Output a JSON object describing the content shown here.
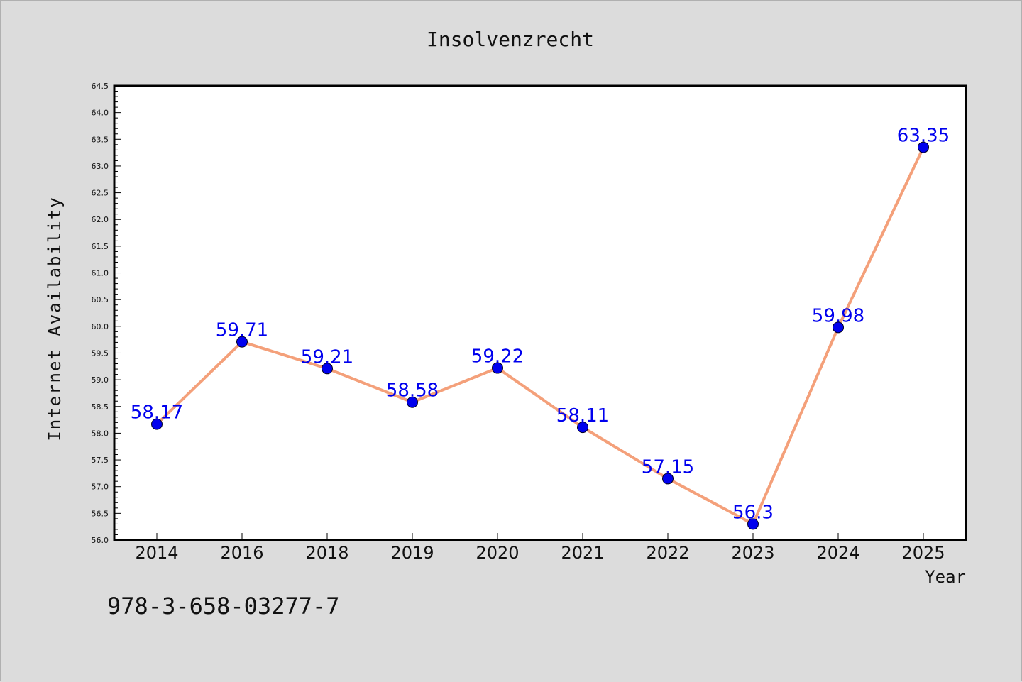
{
  "chart_data": {
    "type": "line",
    "title": "Insolvenzrecht",
    "xlabel": "Year",
    "ylabel": "Internet Availability",
    "categories": [
      "2014",
      "2016",
      "2018",
      "2019",
      "2020",
      "2021",
      "2022",
      "2023",
      "2024",
      "2025"
    ],
    "series": [
      {
        "values": [
          58.17,
          59.71,
          59.21,
          58.58,
          59.22,
          58.11,
          57.15,
          56.3,
          59.98,
          63.35
        ],
        "labels": [
          "58.17",
          "59.71",
          "59.21",
          "58.58",
          "59.22",
          "58.11",
          "57.15",
          "56.3",
          "59.98",
          "63.35"
        ],
        "line_color": "#f4a07a",
        "marker_color": "#0000ee"
      }
    ],
    "ylim": [
      56.0,
      64.5
    ],
    "yticks": [
      "56.0",
      "56.5",
      "57.0",
      "57.5",
      "58.0",
      "58.5",
      "59.0",
      "59.5",
      "60.0",
      "60.5",
      "61.0",
      "61.5",
      "62.0",
      "62.5",
      "63.0",
      "63.5",
      "64.0",
      "64.5"
    ],
    "grid": false,
    "legend": false
  },
  "footer": {
    "text": "978-3-658-03277-7"
  },
  "colors": {
    "background": "#dcdcdc",
    "plot_background": "#ffffff",
    "line": "#f4a07a",
    "marker": "#0000ee",
    "label": "#0000ee"
  }
}
